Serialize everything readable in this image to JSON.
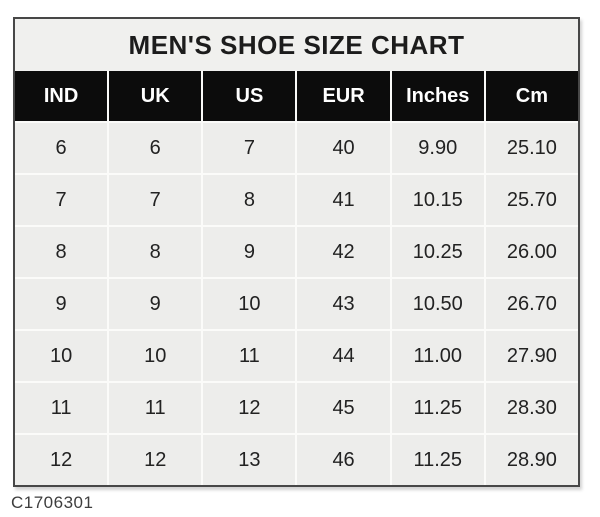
{
  "chart_data": {
    "type": "table",
    "title": "MEN'S SHOE SIZE CHART",
    "columns": [
      "IND",
      "UK",
      "US",
      "EUR",
      "Inches",
      "Cm"
    ],
    "rows": [
      [
        "6",
        "6",
        "7",
        "40",
        "9.90",
        "25.10"
      ],
      [
        "7",
        "7",
        "8",
        "41",
        "10.15",
        "25.70"
      ],
      [
        "8",
        "8",
        "9",
        "42",
        "10.25",
        "26.00"
      ],
      [
        "9",
        "9",
        "10",
        "43",
        "10.50",
        "26.70"
      ],
      [
        "10",
        "10",
        "11",
        "44",
        "11.00",
        "27.90"
      ],
      [
        "11",
        "11",
        "12",
        "45",
        "11.25",
        "28.30"
      ],
      [
        "12",
        "12",
        "13",
        "46",
        "11.25",
        "28.90"
      ]
    ],
    "layout_hints": {
      "header_style": "black cells with white bold text",
      "grid": "thin light gridlines between light-gray cells",
      "title_position": "top band, centered"
    }
  },
  "watermark": "C1706301",
  "colors": {
    "header_bg": "#0c0c0c",
    "header_text": "#ffffff",
    "band_bg": "#f0f0ee",
    "cell_bg": "#ededeb",
    "cell_text": "#222222",
    "grid_line": "#fbfbf9",
    "border": "#474747",
    "title_text": "#1c1c1c",
    "watermark_text": "#3d3d3d"
  }
}
